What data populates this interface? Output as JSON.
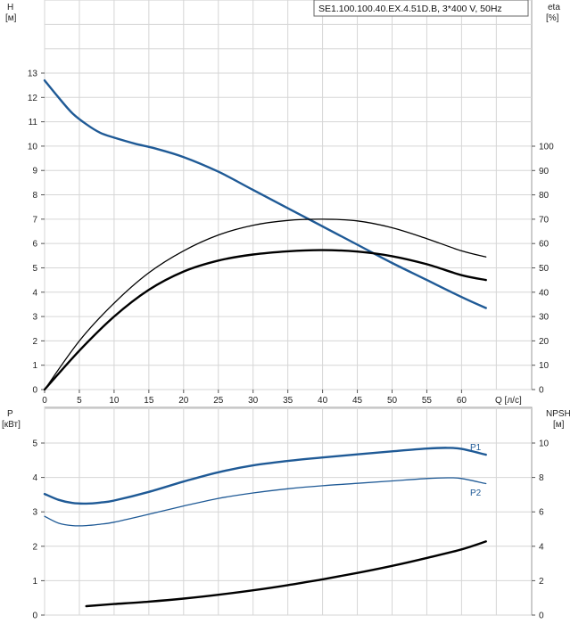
{
  "chart_data": [
    {
      "type": "line",
      "title": "SE1.100.100.40.EX.4.51D.B, 3*400 V, 50Hz",
      "xlabel": "Q [л/с]",
      "xlim": [
        0,
        65
      ],
      "x_ticks": [
        "0",
        "5",
        "10",
        "15",
        "20",
        "25",
        "30",
        "35",
        "40",
        "45",
        "50",
        "55",
        "60"
      ],
      "x_tick_label": "Q [л/с]",
      "y_left": {
        "label_line1": "H",
        "label_line2": "[м]",
        "range": [
          0,
          13
        ],
        "ticks": [
          "0",
          "1",
          "2",
          "3",
          "4",
          "5",
          "6",
          "7",
          "8",
          "9",
          "10",
          "11",
          "12",
          "13"
        ]
      },
      "y_right": {
        "label_line1": "eta",
        "label_line2": "[%]",
        "range": [
          0,
          100
        ],
        "ticks": [
          "0",
          "10",
          "20",
          "30",
          "40",
          "50",
          "60",
          "70",
          "80",
          "90",
          "100"
        ]
      },
      "grid": true,
      "series": [
        {
          "axis": "left",
          "color": "#1f5a96",
          "width": 2.4,
          "x": [
            0,
            2,
            4,
            6,
            8,
            10,
            13,
            16,
            20,
            25,
            30,
            35,
            40,
            45,
            50,
            55,
            60,
            63.5
          ],
          "values": [
            12.7,
            12.0,
            11.35,
            10.9,
            10.55,
            10.35,
            10.1,
            9.9,
            9.55,
            8.95,
            8.2,
            7.45,
            6.7,
            5.95,
            5.2,
            4.5,
            3.8,
            3.35
          ]
        },
        {
          "axis": "right",
          "color": "#000000",
          "width": 1.3,
          "x": [
            0,
            5,
            10,
            15,
            20,
            25,
            30,
            35,
            40,
            45,
            50,
            55,
            60,
            63.5
          ],
          "values": [
            0,
            20,
            35.5,
            48,
            57,
            63.5,
            67.5,
            69.5,
            70,
            69.3,
            66.5,
            62,
            57,
            54.5
          ]
        },
        {
          "axis": "right",
          "color": "#000000",
          "width": 2.4,
          "x": [
            0,
            5,
            10,
            15,
            20,
            25,
            30,
            35,
            40,
            45,
            50,
            55,
            60,
            63.5
          ],
          "values": [
            0,
            16,
            30,
            41,
            48.5,
            53,
            55.5,
            56.8,
            57.3,
            56.7,
            54.8,
            51.5,
            47,
            45
          ]
        }
      ]
    },
    {
      "type": "line",
      "xlim": [
        0,
        65
      ],
      "y_left": {
        "label_line1": "P",
        "label_line2": "[кВт]",
        "range": [
          0,
          5
        ],
        "ticks": [
          "0",
          "1",
          "2",
          "3",
          "4",
          "5"
        ]
      },
      "y_right": {
        "label_line1": "NPSH",
        "label_line2": "[м]",
        "range": [
          0,
          10
        ],
        "ticks": [
          "0",
          "2",
          "4",
          "6",
          "8",
          "10"
        ]
      },
      "grid": true,
      "series": [
        {
          "name": "P1",
          "axis": "left",
          "color": "#1f5a96",
          "width": 2.4,
          "x": [
            0,
            2,
            4,
            6,
            8,
            10,
            15,
            20,
            25,
            30,
            35,
            40,
            45,
            50,
            55,
            58,
            60,
            63.5
          ],
          "values": [
            3.52,
            3.35,
            3.26,
            3.24,
            3.27,
            3.33,
            3.58,
            3.88,
            4.15,
            4.35,
            4.48,
            4.58,
            4.67,
            4.76,
            4.84,
            4.86,
            4.83,
            4.66
          ]
        },
        {
          "name": "P2",
          "axis": "left",
          "color": "#1f5a96",
          "width": 1.3,
          "x": [
            0,
            2,
            4,
            6,
            8,
            10,
            15,
            20,
            25,
            30,
            35,
            40,
            45,
            50,
            55,
            58,
            60,
            63.5
          ],
          "values": [
            2.87,
            2.67,
            2.6,
            2.6,
            2.64,
            2.7,
            2.93,
            3.17,
            3.39,
            3.55,
            3.67,
            3.76,
            3.83,
            3.9,
            3.97,
            3.99,
            3.97,
            3.82
          ]
        },
        {
          "axis": "right",
          "color": "#000000",
          "width": 2.4,
          "x": [
            6,
            10,
            15,
            20,
            25,
            30,
            35,
            40,
            45,
            50,
            55,
            60,
            63.5
          ],
          "values": [
            0.52,
            0.64,
            0.78,
            0.96,
            1.18,
            1.44,
            1.74,
            2.08,
            2.45,
            2.86,
            3.32,
            3.82,
            4.28
          ]
        }
      ]
    }
  ]
}
